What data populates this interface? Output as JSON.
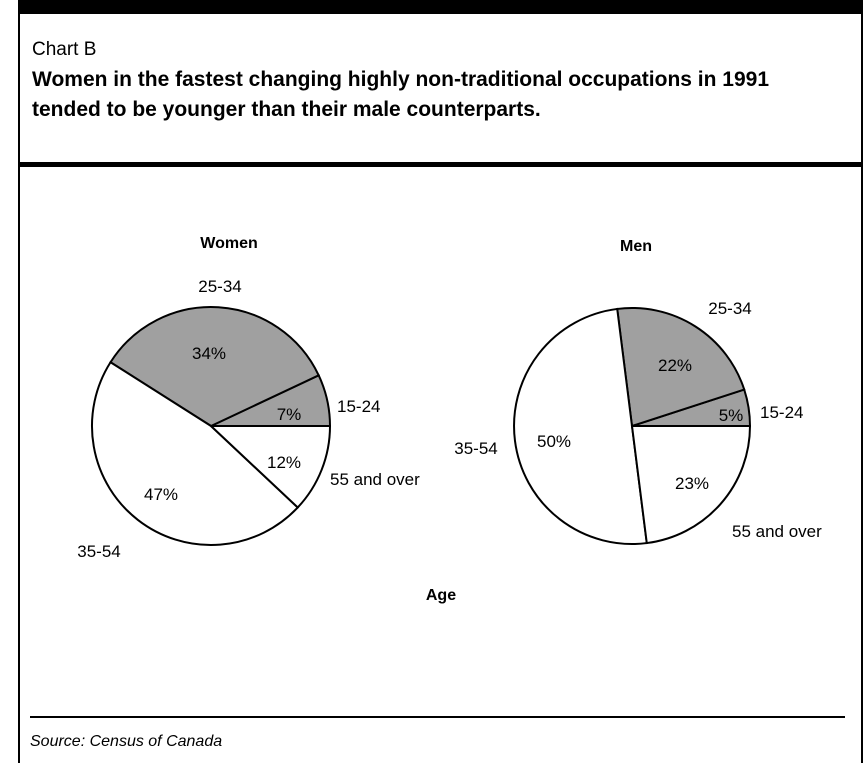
{
  "header": {
    "label": "Chart B",
    "title": "Women in the fastest changing highly non-traditional occupations in 1991 tended to be younger than their male counterparts."
  },
  "source": "Source: Census of Canada",
  "chart_data": {
    "type": "pie",
    "xlabel": "Age",
    "colors": {
      "shaded": "#a0a0a0",
      "unshaded": "#ffffff"
    },
    "charts": [
      {
        "title": "Women",
        "slices": [
          {
            "label": "15-24",
            "value": 7,
            "display": "7%",
            "shaded": true
          },
          {
            "label": "25-34",
            "value": 34,
            "display": "34%",
            "shaded": true
          },
          {
            "label": "35-54",
            "value": 47,
            "display": "47%",
            "shaded": false
          },
          {
            "label": "55 and over",
            "value": 12,
            "display": "12%",
            "shaded": false
          }
        ]
      },
      {
        "title": "Men",
        "slices": [
          {
            "label": "15-24",
            "value": 5,
            "display": "5%",
            "shaded": true
          },
          {
            "label": "25-34",
            "value": 22,
            "display": "22%",
            "shaded": true
          },
          {
            "label": "35-54",
            "value": 50,
            "display": "50%",
            "shaded": false
          },
          {
            "label": "55 and over",
            "value": 23,
            "display": "23%",
            "shaded": false
          }
        ]
      }
    ]
  }
}
